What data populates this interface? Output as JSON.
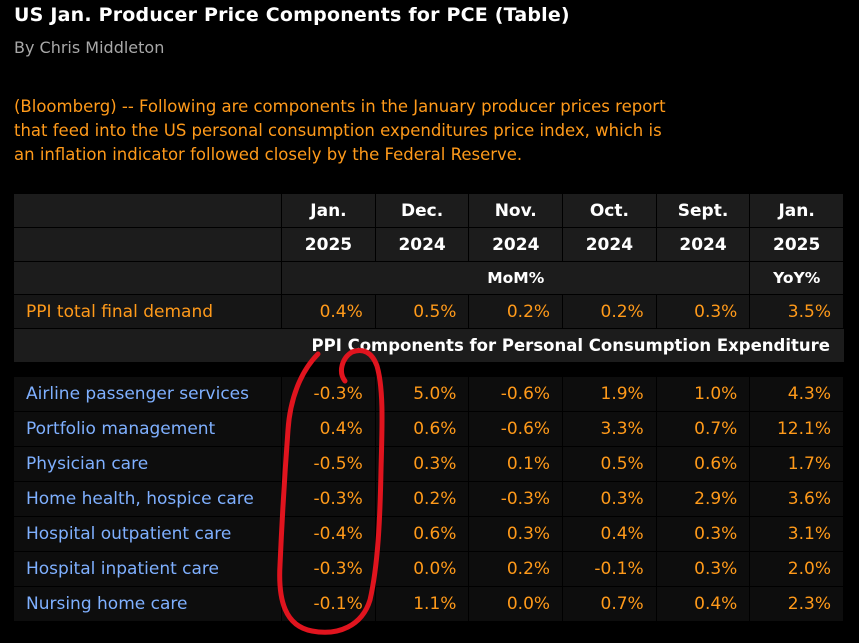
{
  "headline": "US Jan. Producer Price Components for PCE (Table)",
  "byline": "By Chris Middleton",
  "intro_lines": [
    "(Bloomberg) -- Following are components in the January producer prices report",
    "that feed into the US personal consumption expenditures price index, which is",
    "an inflation indicator followed closely by the Federal Reserve."
  ],
  "table": {
    "months": [
      "Jan.",
      "Dec.",
      "Nov.",
      "Oct.",
      "Sept.",
      "Jan."
    ],
    "years": [
      "2025",
      "2024",
      "2024",
      "2024",
      "2024",
      "2025"
    ],
    "mom_label": "MoM%",
    "yoy_label": "YoY%",
    "total_row": {
      "label": "PPI total final demand",
      "values": [
        "0.4%",
        "0.5%",
        "0.2%",
        "0.2%",
        "0.3%",
        "3.5%"
      ]
    },
    "components_title": "PPI Components for Personal Consumption Expenditure",
    "rows": [
      {
        "label": "Airline passenger services",
        "values": [
          "-0.3%",
          "5.0%",
          "-0.6%",
          "1.9%",
          "1.0%",
          "4.3%"
        ]
      },
      {
        "label": "Portfolio management",
        "values": [
          "0.4%",
          "0.6%",
          "-0.6%",
          "3.3%",
          "0.7%",
          "12.1%"
        ]
      },
      {
        "label": "Physician care",
        "values": [
          "-0.5%",
          "0.3%",
          "0.1%",
          "0.5%",
          "0.6%",
          "1.7%"
        ]
      },
      {
        "label": "Home health, hospice care",
        "values": [
          "-0.3%",
          "0.2%",
          "-0.3%",
          "0.3%",
          "2.9%",
          "3.6%"
        ]
      },
      {
        "label": "Hospital outpatient care",
        "values": [
          "-0.4%",
          "0.6%",
          "0.3%",
          "0.4%",
          "0.3%",
          "3.1%"
        ]
      },
      {
        "label": "Hospital inpatient care",
        "values": [
          "-0.3%",
          "0.0%",
          "0.2%",
          "-0.1%",
          "0.3%",
          "2.0%"
        ]
      },
      {
        "label": "Nursing home care",
        "values": [
          "-0.1%",
          "1.1%",
          "0.0%",
          "0.7%",
          "0.4%",
          "2.3%"
        ]
      }
    ]
  },
  "colors": {
    "background": "#000000",
    "accent_orange": "#ff9a1a",
    "label_blue": "#7fb0ff",
    "annotation_red": "#e0141e"
  },
  "annotation": {
    "shape": "hand-drawn-loop",
    "highlights_column": "Jan. 2025 MoM%"
  }
}
